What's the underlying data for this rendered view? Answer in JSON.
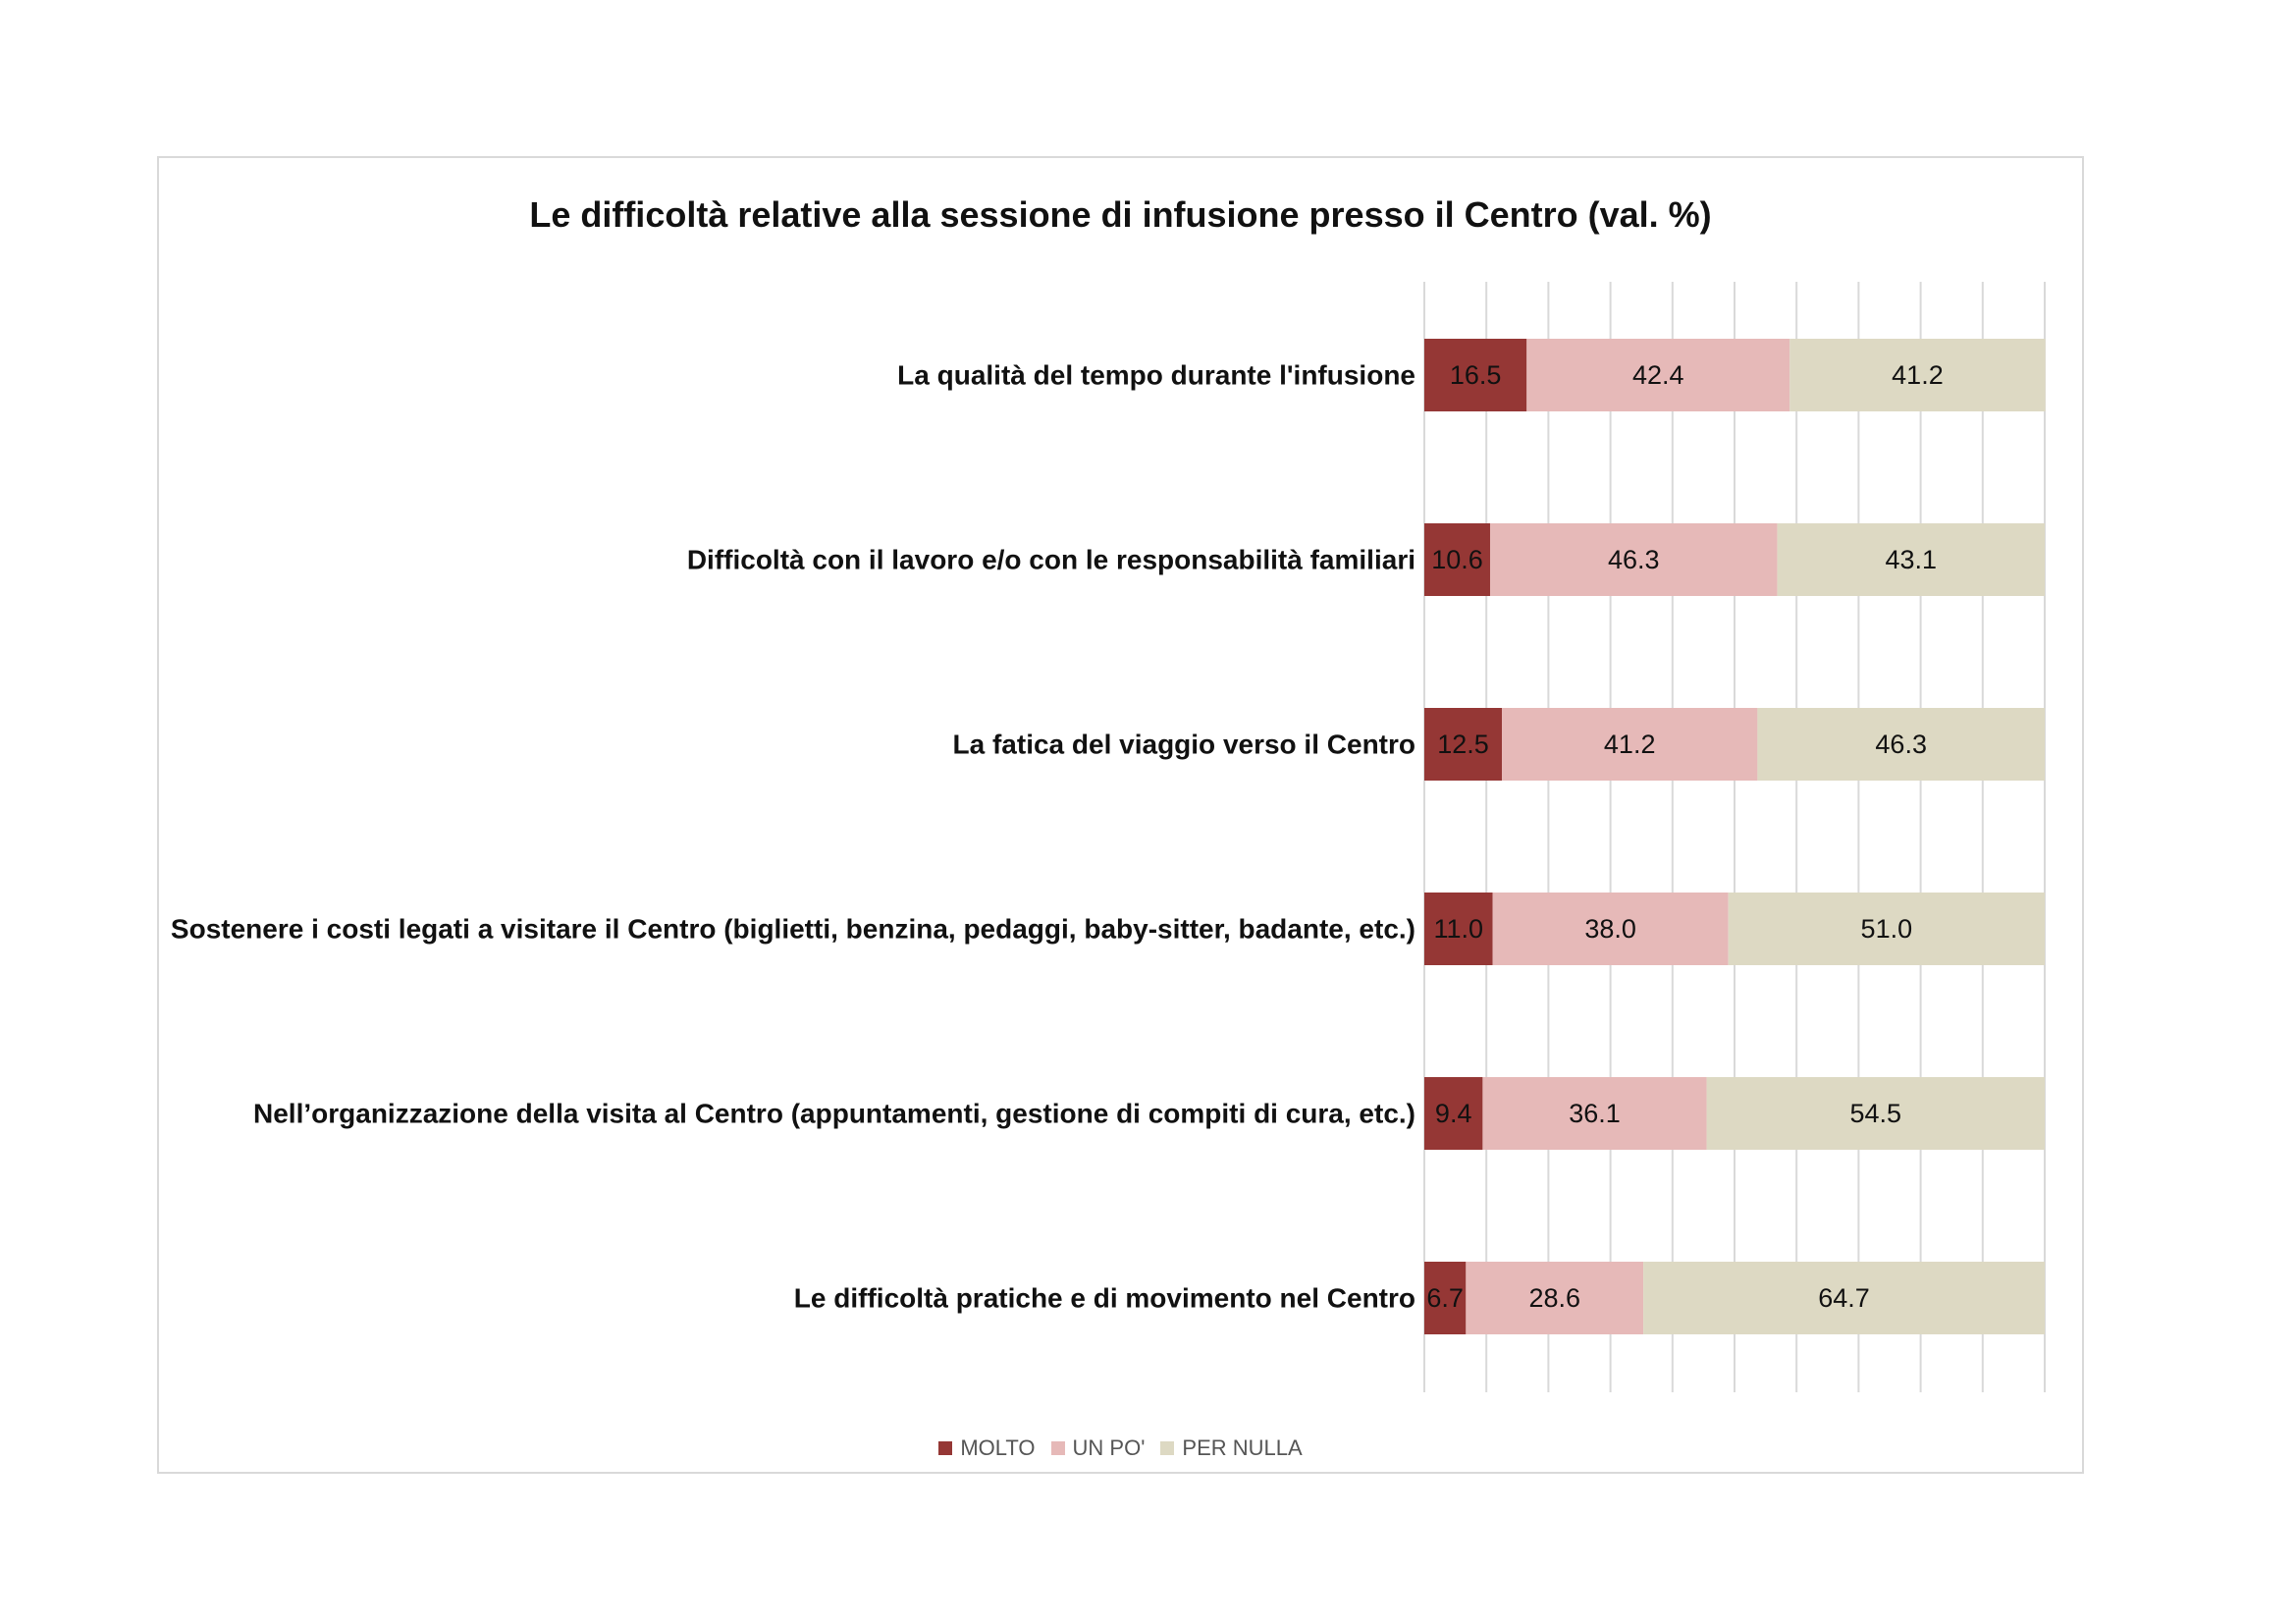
{
  "chart_data": {
    "type": "bar",
    "orientation": "horizontal",
    "stacked": true,
    "title": "Le difficoltà relative alla sessione di infusione presso il Centro (val. %)",
    "categories": [
      "La qualità del tempo durante l'infusione",
      "Difficoltà con il lavoro e/o con le responsabilità familiari",
      "La fatica del viaggio verso il Centro",
      "Sostenere i costi legati a visitare il Centro (biglietti, benzina, pedaggi, baby-sitter, badante, etc.)",
      "Nell’organizzazione della visita al Centro (appuntamenti, gestione di compiti di cura, etc.)",
      "Le difficoltà pratiche e di movimento nel Centro"
    ],
    "series": [
      {
        "name": "MOLTO",
        "color": "#953735",
        "values": [
          16.5,
          10.6,
          12.5,
          11.0,
          9.4,
          6.7
        ]
      },
      {
        "name": "UN PO'",
        "color": "#e6b9b8",
        "values": [
          42.4,
          46.3,
          41.2,
          38.0,
          36.1,
          28.6
        ]
      },
      {
        "name": "PER NULLA",
        "color": "#ddd9c3",
        "values": [
          41.2,
          43.1,
          46.3,
          51.0,
          54.5,
          64.7
        ]
      }
    ],
    "xlim": [
      0,
      100
    ],
    "grid": true,
    "legend": "bottom-center",
    "data_labels": true
  }
}
